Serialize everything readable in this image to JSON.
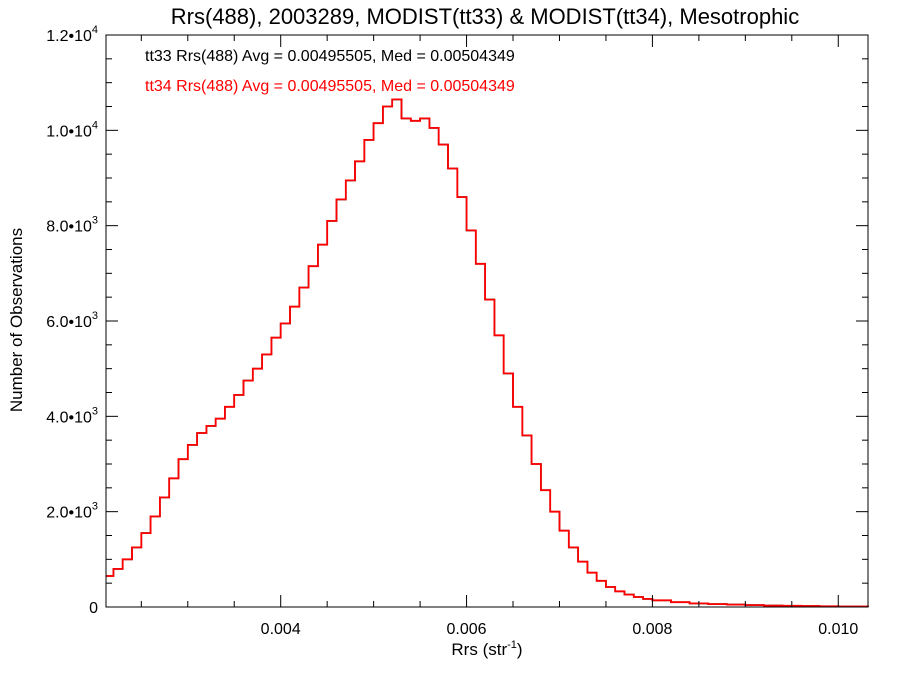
{
  "chart_data": {
    "type": "line",
    "title": "Rrs(488), 2003289, MODIST(tt33) & MODIST(tt34), Mesotrophic",
    "xlabel": "Rrs (str",
    "xlabel_sup": "-1",
    "xlabel_end": ")",
    "ylabel": "Number of Observations",
    "xlim": [
      0.00212,
      0.01032
    ],
    "ylim": [
      0,
      12000
    ],
    "x_ticks": [
      {
        "value": 0.004,
        "label": "0.004"
      },
      {
        "value": 0.006,
        "label": "0.006"
      },
      {
        "value": 0.008,
        "label": "0.008"
      },
      {
        "value": 0.01,
        "label": "0.010"
      }
    ],
    "y_ticks": [
      {
        "value": 0,
        "mant": "0",
        "exp": ""
      },
      {
        "value": 2000,
        "mant": "2.0•10",
        "exp": "3"
      },
      {
        "value": 4000,
        "mant": "4.0•10",
        "exp": "3"
      },
      {
        "value": 6000,
        "mant": "6.0•10",
        "exp": "3"
      },
      {
        "value": 8000,
        "mant": "8.0•10",
        "exp": "3"
      },
      {
        "value": 10000,
        "mant": "1.0•10",
        "exp": "4"
      },
      {
        "value": 12000,
        "mant": "1.2•10",
        "exp": "4"
      }
    ],
    "legend": [
      {
        "text": "tt33 Rrs(488) Avg = 0.00495505, Med = 0.00504349",
        "color": "#000000"
      },
      {
        "text": "tt34 Rrs(488) Avg = 0.00495505, Med = 0.00504349",
        "color": "#ff0000"
      }
    ],
    "legend_placement": "top-left",
    "grid": false,
    "series": [
      {
        "name": "tt33",
        "color": "#000000",
        "x": [
          0.00212,
          0.0022,
          0.0023,
          0.0024,
          0.0025,
          0.0026,
          0.0027,
          0.0028,
          0.0029,
          0.003,
          0.0031,
          0.0032,
          0.0033,
          0.0034,
          0.0035,
          0.0036,
          0.0037,
          0.0038,
          0.0039,
          0.004,
          0.0041,
          0.0042,
          0.0043,
          0.0044,
          0.0045,
          0.0046,
          0.0047,
          0.0048,
          0.0049,
          0.005,
          0.0051,
          0.0052,
          0.0053,
          0.0054,
          0.0055,
          0.0056,
          0.0057,
          0.0058,
          0.0059,
          0.006,
          0.0061,
          0.0062,
          0.0063,
          0.0064,
          0.0065,
          0.0066,
          0.0067,
          0.0068,
          0.0069,
          0.007,
          0.0071,
          0.0072,
          0.0073,
          0.0074,
          0.0075,
          0.0076,
          0.0077,
          0.0078,
          0.0079,
          0.008,
          0.0082,
          0.0084,
          0.0086,
          0.0088,
          0.009,
          0.0092,
          0.0094,
          0.0096,
          0.0098,
          0.01,
          0.01032
        ],
        "y": [
          650,
          800,
          1000,
          1250,
          1550,
          1900,
          2300,
          2700,
          3100,
          3400,
          3650,
          3800,
          3950,
          4200,
          4450,
          4750,
          5000,
          5300,
          5650,
          5950,
          6300,
          6700,
          7150,
          7600,
          8100,
          8550,
          8950,
          9350,
          9800,
          10150,
          10500,
          10650,
          10250,
          10200,
          10250,
          10050,
          9700,
          9200,
          8600,
          7900,
          7200,
          6450,
          5700,
          4900,
          4200,
          3600,
          3000,
          2450,
          2000,
          1600,
          1250,
          950,
          720,
          550,
          420,
          330,
          260,
          210,
          170,
          140,
          100,
          75,
          60,
          50,
          40,
          30,
          25,
          20,
          15,
          10,
          5
        ]
      },
      {
        "name": "tt34",
        "color": "#ff0000",
        "x": [
          0.00212,
          0.0022,
          0.0023,
          0.0024,
          0.0025,
          0.0026,
          0.0027,
          0.0028,
          0.0029,
          0.003,
          0.0031,
          0.0032,
          0.0033,
          0.0034,
          0.0035,
          0.0036,
          0.0037,
          0.0038,
          0.0039,
          0.004,
          0.0041,
          0.0042,
          0.0043,
          0.0044,
          0.0045,
          0.0046,
          0.0047,
          0.0048,
          0.0049,
          0.005,
          0.0051,
          0.0052,
          0.0053,
          0.0054,
          0.0055,
          0.0056,
          0.0057,
          0.0058,
          0.0059,
          0.006,
          0.0061,
          0.0062,
          0.0063,
          0.0064,
          0.0065,
          0.0066,
          0.0067,
          0.0068,
          0.0069,
          0.007,
          0.0071,
          0.0072,
          0.0073,
          0.0074,
          0.0075,
          0.0076,
          0.0077,
          0.0078,
          0.0079,
          0.008,
          0.0082,
          0.0084,
          0.0086,
          0.0088,
          0.009,
          0.0092,
          0.0094,
          0.0096,
          0.0098,
          0.01,
          0.01032
        ],
        "y": [
          650,
          800,
          1000,
          1250,
          1550,
          1900,
          2300,
          2700,
          3100,
          3400,
          3650,
          3800,
          3950,
          4200,
          4450,
          4750,
          5000,
          5300,
          5650,
          5950,
          6300,
          6700,
          7150,
          7600,
          8100,
          8550,
          8950,
          9350,
          9800,
          10150,
          10500,
          10650,
          10250,
          10200,
          10250,
          10050,
          9700,
          9200,
          8600,
          7900,
          7200,
          6450,
          5700,
          4900,
          4200,
          3600,
          3000,
          2450,
          2000,
          1600,
          1250,
          950,
          720,
          550,
          420,
          330,
          260,
          210,
          170,
          140,
          100,
          75,
          60,
          50,
          40,
          30,
          25,
          20,
          15,
          10,
          5
        ]
      }
    ]
  }
}
